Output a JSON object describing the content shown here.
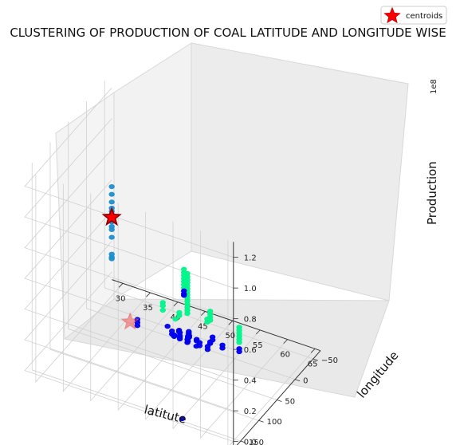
{
  "chart_data": {
    "type": "scatter",
    "title": "CLUSTERING OF PRODUCTION OF COAL LATITUDE AND LONGITUDE WISE",
    "xlabel": "latitute",
    "ylabel": "longitude",
    "zlabel": "Production",
    "z_offset_text": "1e8",
    "xlim": [
      28,
      66
    ],
    "ylim": [
      -70,
      170
    ],
    "zlim": [
      -5000000,
      130000000
    ],
    "xticks": [
      "30",
      "35",
      "40",
      "45",
      "50",
      "55",
      "60",
      "65"
    ],
    "yticks": [
      "−50",
      "0",
      "50",
      "100",
      "150"
    ],
    "zticks": [
      "0.0",
      "0.2",
      "0.4",
      "0.6",
      "0.8",
      "1.0",
      "1.2"
    ],
    "grid": true,
    "legend": {
      "position": "top-right",
      "entries": [
        "centroids"
      ]
    },
    "colors": {
      "cluster_low": "#0000ee",
      "cluster_mid": "#00f58a",
      "cluster_high": "#1f8fcf",
      "centroid": "#ff0000",
      "pane": "#f2f2f2",
      "grid": "#d0d0d0"
    },
    "series": [
      {
        "cluster": "high",
        "points": [
          [
            40.6,
            121,
            122000000
          ],
          [
            40.6,
            121,
            117000000
          ],
          [
            40.6,
            121,
            112000000
          ],
          [
            40.6,
            121,
            108000000
          ],
          [
            40.6,
            121,
            106000000
          ],
          [
            40.6,
            121,
            104000000
          ],
          [
            40.6,
            121,
            99000000
          ],
          [
            40.6,
            121,
            96000000
          ],
          [
            40.6,
            121,
            94000000
          ],
          [
            40.6,
            121,
            89000000
          ],
          [
            40.6,
            121,
            78000000
          ],
          [
            40.6,
            121,
            76000000
          ],
          [
            40.6,
            121,
            75000000
          ]
        ]
      },
      {
        "cluster": "mid",
        "points": [
          [
            47.5,
            17,
            46000000
          ],
          [
            47.5,
            17,
            44000000
          ],
          [
            47.5,
            17,
            42000000
          ],
          [
            47.5,
            17,
            40000000
          ],
          [
            47.5,
            17,
            38000000
          ],
          [
            47.5,
            17,
            36000000
          ],
          [
            47.5,
            17,
            34000000
          ],
          [
            47.5,
            17,
            32000000
          ],
          [
            47.5,
            17,
            30000000
          ],
          [
            47.5,
            17,
            28000000
          ],
          [
            47.5,
            17,
            26000000
          ],
          [
            47.5,
            17,
            24000000
          ],
          [
            47.5,
            17,
            22000000
          ],
          [
            47.5,
            17,
            20000000
          ],
          [
            50.8,
            4,
            22000000
          ],
          [
            50.8,
            4,
            20000000
          ],
          [
            50.8,
            4,
            18000000
          ],
          [
            50.8,
            4,
            16000000
          ],
          [
            43.1,
            18,
            22000000
          ],
          [
            43.1,
            18,
            20000000
          ],
          [
            43.1,
            18,
            17000000
          ],
          [
            45.4,
            18,
            14000000
          ],
          [
            45.5,
            9,
            16000000
          ],
          [
            45.5,
            9,
            14000000
          ],
          [
            50.6,
            9,
            18000000
          ],
          [
            50.6,
            9,
            16000000
          ],
          [
            55.9,
            1,
            17000000
          ],
          [
            55.9,
            1,
            15000000
          ],
          [
            55.9,
            1,
            13000000
          ],
          [
            55.9,
            1,
            11000000
          ],
          [
            55.9,
            1,
            9000000
          ],
          [
            55.9,
            1,
            7000000
          ],
          [
            41.0,
            -72,
            17000000
          ],
          [
            41.0,
            -72,
            15000000
          ],
          [
            41.0,
            -72,
            13000000
          ],
          [
            41.0,
            -72,
            11000000
          ],
          [
            41.0,
            -72,
            9000000
          ],
          [
            41.0,
            -72,
            7000000
          ],
          [
            41.0,
            -72,
            5000000
          ]
        ]
      },
      {
        "cluster": "low",
        "points": [
          [
            38.4,
            17,
            5000000
          ],
          [
            38.4,
            17,
            3000000
          ],
          [
            38.4,
            17,
            1000000
          ],
          [
            42.9,
            2,
            2000000
          ],
          [
            44.3,
            11,
            3000000
          ],
          [
            44.3,
            11,
            1000000
          ],
          [
            45.6,
            9,
            3000000
          ],
          [
            45.6,
            9,
            1000000
          ],
          [
            44.9,
            14,
            2000000
          ],
          [
            44.9,
            14,
            1000000
          ],
          [
            45.0,
            2,
            2000000
          ],
          [
            45.0,
            2,
            1000000
          ],
          [
            46.0,
            15,
            2000000
          ],
          [
            46.0,
            15,
            1000000
          ],
          [
            46.8,
            4,
            1000000
          ],
          [
            46.9,
            4,
            4000000
          ],
          [
            46.9,
            4,
            3000000
          ],
          [
            46.9,
            4,
            2000000
          ],
          [
            47.1,
            6,
            2000000
          ],
          [
            47.1,
            6,
            1000000
          ],
          [
            47.4,
            14,
            4000000
          ],
          [
            47.4,
            14,
            3000000
          ],
          [
            47.4,
            14,
            1000000
          ],
          [
            47.5,
            17,
            3000000
          ],
          [
            47.5,
            17,
            1000000
          ],
          [
            48.6,
            8,
            2000000
          ],
          [
            48.6,
            8,
            1000000
          ],
          [
            49.2,
            18,
            1000000
          ],
          [
            49.6,
            15,
            3000000
          ],
          [
            49.6,
            15,
            1000000
          ],
          [
            50.8,
            4,
            2000000
          ],
          [
            50.8,
            4,
            1000000
          ],
          [
            51.2,
            17,
            3000000
          ],
          [
            51.2,
            17,
            1000000
          ],
          [
            51.1,
            2,
            5000000
          ],
          [
            51.1,
            2,
            3000000
          ],
          [
            53.1,
            5,
            3000000
          ],
          [
            53.1,
            5,
            1000000
          ],
          [
            55.9,
            1,
            3000000
          ],
          [
            55.9,
            1,
            1000000
          ],
          [
            41.0,
            -72,
            3000000
          ],
          [
            41.0,
            -72,
            1000000
          ],
          [
            41.0,
            -72,
            0
          ],
          [
            56.0,
            160,
            0
          ]
        ]
      }
    ],
    "centroids": [
      [
        40.6,
        121,
        102000000
      ],
      [
        37.0,
        16,
        1500000
      ]
    ]
  }
}
